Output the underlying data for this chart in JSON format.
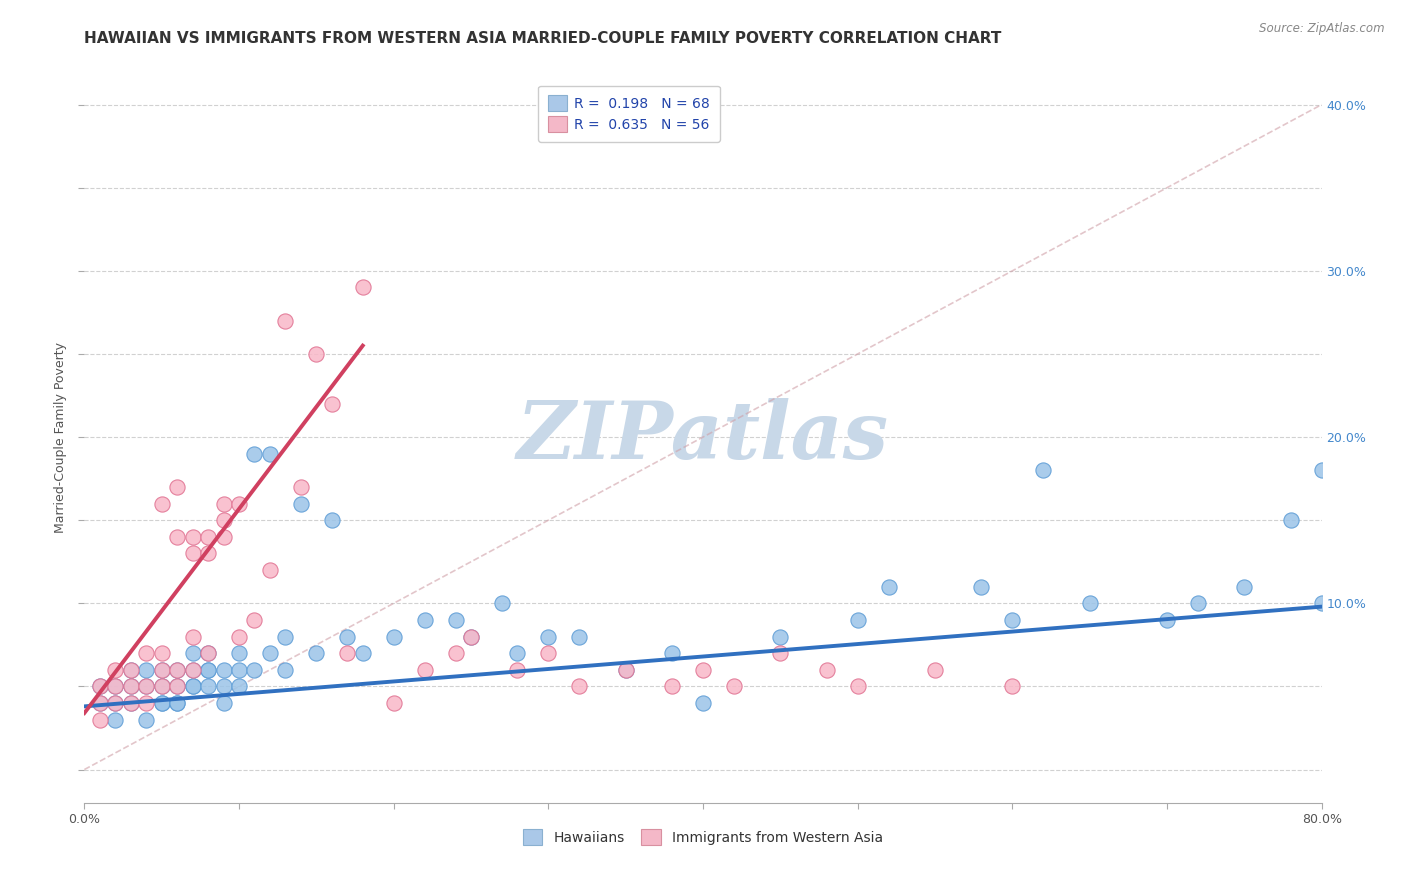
{
  "title": "HAWAIIAN VS IMMIGRANTS FROM WESTERN ASIA MARRIED-COUPLE FAMILY POVERTY CORRELATION CHART",
  "source": "Source: ZipAtlas.com",
  "ylabel": "Married-Couple Family Poverty",
  "xlim": [
    0.0,
    0.8
  ],
  "ylim": [
    -0.02,
    0.42
  ],
  "xticks": [
    0.0,
    0.1,
    0.2,
    0.3,
    0.4,
    0.5,
    0.6,
    0.7,
    0.8
  ],
  "yticks": [
    0.0,
    0.05,
    0.1,
    0.15,
    0.2,
    0.25,
    0.3,
    0.35,
    0.4
  ],
  "legend_r1": "R =  0.198   N = 68",
  "legend_r2": "R =  0.635   N = 56",
  "hawaiian_fill": "#9bc4e8",
  "hawaiian_edge": "#5b9bd5",
  "immigrant_fill": "#f9b8c8",
  "immigrant_edge": "#e07090",
  "trend_hawaiian_color": "#3070c0",
  "trend_immigrant_color": "#d04060",
  "diagonal_color": "#c0c0c0",
  "background_color": "#ffffff",
  "watermark_color": "#c8d8e8",
  "right_tick_color": "#4488cc",
  "hawaiians_x": [
    0.01,
    0.01,
    0.02,
    0.02,
    0.02,
    0.03,
    0.03,
    0.03,
    0.04,
    0.04,
    0.04,
    0.05,
    0.05,
    0.05,
    0.05,
    0.06,
    0.06,
    0.06,
    0.06,
    0.07,
    0.07,
    0.07,
    0.07,
    0.08,
    0.08,
    0.08,
    0.08,
    0.09,
    0.09,
    0.09,
    0.1,
    0.1,
    0.1,
    0.11,
    0.11,
    0.12,
    0.12,
    0.13,
    0.13,
    0.14,
    0.15,
    0.16,
    0.17,
    0.18,
    0.2,
    0.22,
    0.24,
    0.25,
    0.27,
    0.28,
    0.3,
    0.32,
    0.35,
    0.38,
    0.4,
    0.45,
    0.5,
    0.52,
    0.58,
    0.6,
    0.62,
    0.65,
    0.7,
    0.72,
    0.75,
    0.78,
    0.8,
    0.8
  ],
  "hawaiians_y": [
    0.04,
    0.05,
    0.03,
    0.05,
    0.04,
    0.05,
    0.04,
    0.06,
    0.03,
    0.05,
    0.06,
    0.04,
    0.05,
    0.06,
    0.04,
    0.05,
    0.04,
    0.06,
    0.04,
    0.05,
    0.06,
    0.07,
    0.05,
    0.05,
    0.06,
    0.07,
    0.06,
    0.05,
    0.04,
    0.06,
    0.06,
    0.07,
    0.05,
    0.19,
    0.06,
    0.07,
    0.19,
    0.06,
    0.08,
    0.16,
    0.07,
    0.15,
    0.08,
    0.07,
    0.08,
    0.09,
    0.09,
    0.08,
    0.1,
    0.07,
    0.08,
    0.08,
    0.06,
    0.07,
    0.04,
    0.08,
    0.09,
    0.11,
    0.11,
    0.09,
    0.18,
    0.1,
    0.09,
    0.1,
    0.11,
    0.15,
    0.1,
    0.18
  ],
  "immigrants_x": [
    0.01,
    0.01,
    0.01,
    0.02,
    0.02,
    0.02,
    0.03,
    0.03,
    0.03,
    0.04,
    0.04,
    0.04,
    0.05,
    0.05,
    0.05,
    0.05,
    0.06,
    0.06,
    0.06,
    0.06,
    0.07,
    0.07,
    0.07,
    0.07,
    0.08,
    0.08,
    0.08,
    0.09,
    0.09,
    0.09,
    0.1,
    0.1,
    0.11,
    0.12,
    0.13,
    0.14,
    0.15,
    0.16,
    0.17,
    0.18,
    0.2,
    0.22,
    0.24,
    0.25,
    0.28,
    0.3,
    0.32,
    0.35,
    0.38,
    0.4,
    0.42,
    0.45,
    0.48,
    0.5,
    0.55,
    0.6
  ],
  "immigrants_y": [
    0.03,
    0.04,
    0.05,
    0.04,
    0.05,
    0.06,
    0.04,
    0.05,
    0.06,
    0.05,
    0.07,
    0.04,
    0.06,
    0.07,
    0.16,
    0.05,
    0.06,
    0.17,
    0.14,
    0.05,
    0.14,
    0.06,
    0.08,
    0.13,
    0.14,
    0.13,
    0.07,
    0.16,
    0.14,
    0.15,
    0.16,
    0.08,
    0.09,
    0.12,
    0.27,
    0.17,
    0.25,
    0.22,
    0.07,
    0.29,
    0.04,
    0.06,
    0.07,
    0.08,
    0.06,
    0.07,
    0.05,
    0.06,
    0.05,
    0.06,
    0.05,
    0.07,
    0.06,
    0.05,
    0.06,
    0.05
  ],
  "trend_hawaiian": [
    0.0,
    0.8,
    0.038,
    0.098
  ],
  "trend_immigrant": [
    0.0,
    0.18,
    0.034,
    0.255
  ],
  "diagonal": [
    0.0,
    0.8,
    0.0,
    0.4
  ],
  "title_fontsize": 11,
  "tick_fontsize": 9,
  "ylabel_fontsize": 9
}
